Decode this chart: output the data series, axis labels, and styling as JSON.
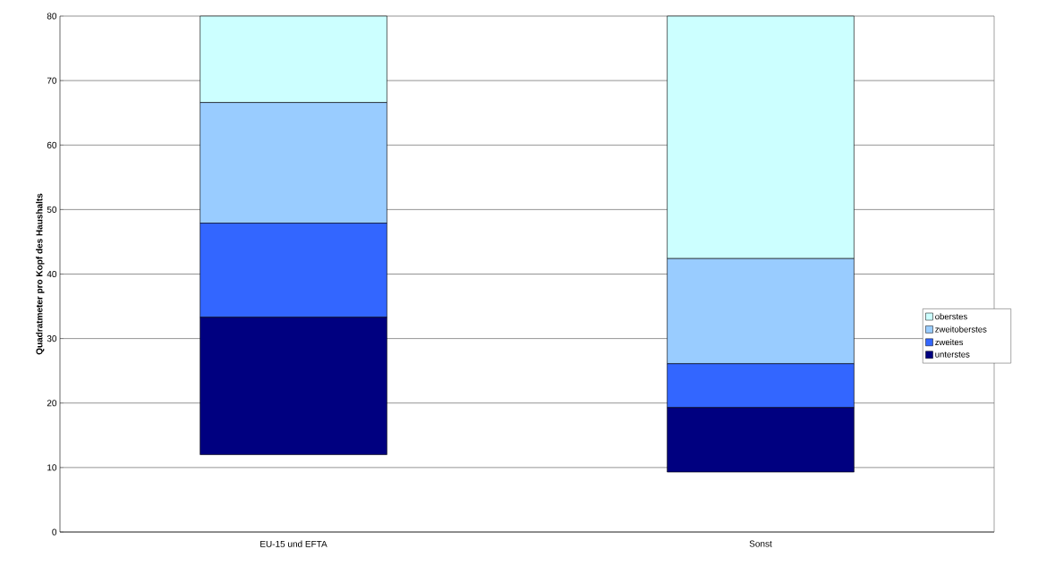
{
  "chart_data": {
    "type": "bar",
    "stacked": true,
    "ylabel": "Quadratmeter pro Kopf des Haushalts",
    "categories": [
      "EU-15 und EFTA",
      "Sonst"
    ],
    "series": [
      {
        "name": "unterstes",
        "color": "#000080",
        "values": [
          21.3,
          10.0
        ],
        "base": [
          12,
          9.3
        ]
      },
      {
        "name": "zweites",
        "color": "#3366ff",
        "values": [
          14.6,
          6.8
        ]
      },
      {
        "name": "zweitoberstes",
        "color": "#99ccff",
        "values": [
          18.7,
          16.3
        ]
      },
      {
        "name": "oberstes",
        "color": "#ccffff",
        "values": [
          13.4,
          37.6
        ]
      }
    ],
    "ylim": [
      0,
      80
    ],
    "yticks": [
      0,
      10,
      20,
      30,
      40,
      50,
      60,
      70,
      80
    ],
    "grid": "y",
    "legend": "right"
  }
}
